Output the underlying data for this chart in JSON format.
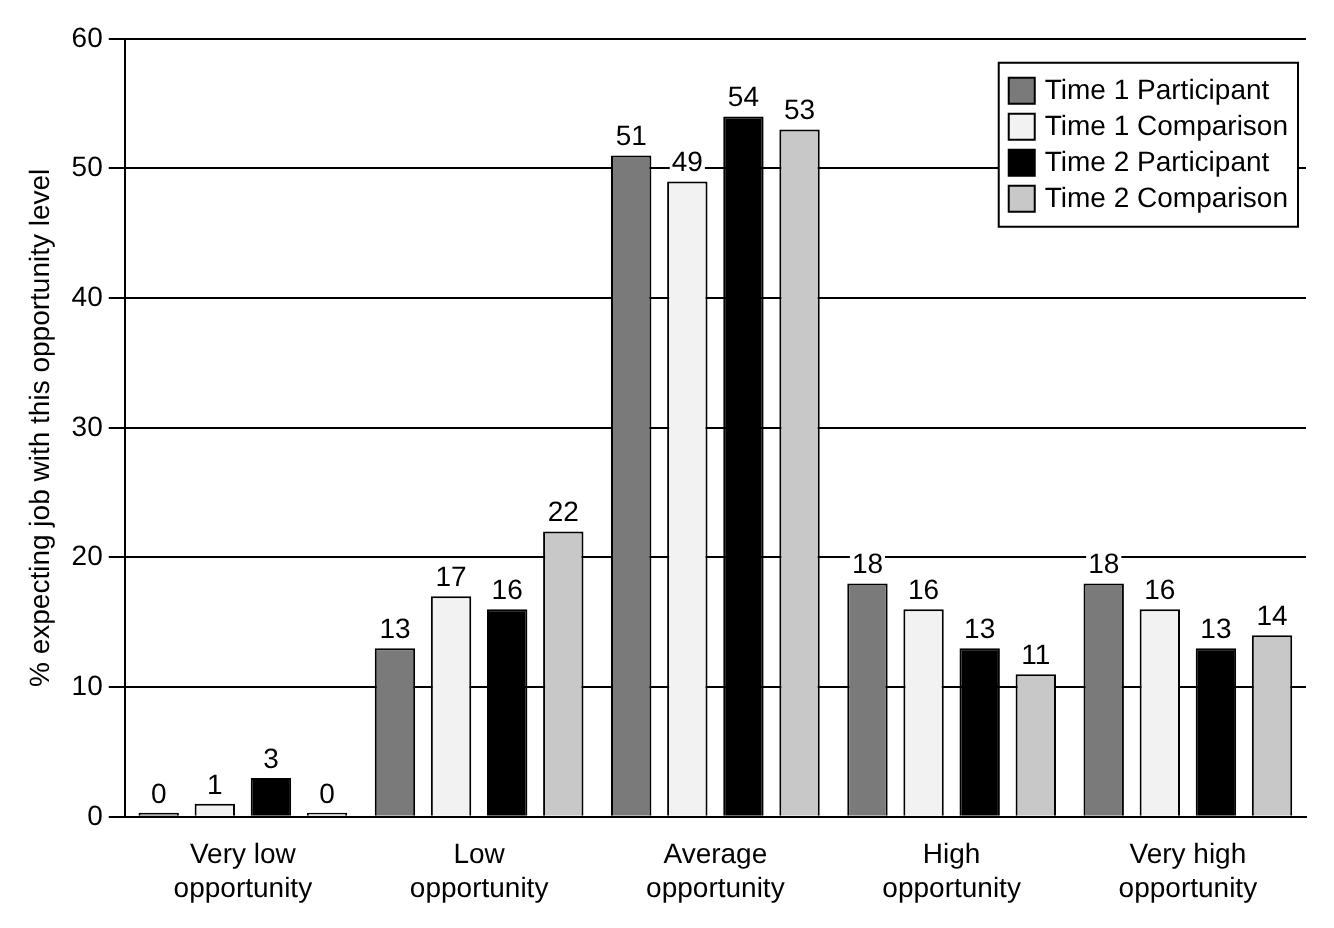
{
  "chart_data": {
    "type": "bar",
    "ylabel": "% expecting job with this opportunity level",
    "categories": [
      "Very low opportunity",
      "Low opportunity",
      "Average opportunity",
      "High opportunity",
      "Very high opportunity"
    ],
    "series": [
      {
        "name": "Time 1 Participant",
        "color": "#7a7a7a",
        "values": [
          0,
          13,
          51,
          18,
          18
        ]
      },
      {
        "name": "Time 1 Comparison",
        "color": "#f2f2f2",
        "values": [
          1,
          17,
          49,
          16,
          16
        ]
      },
      {
        "name": "Time 2 Participant",
        "color": "#000000",
        "values": [
          3,
          16,
          54,
          13,
          13
        ]
      },
      {
        "name": "Time 2 Comparison",
        "color": "#c8c8c8",
        "values": [
          0,
          22,
          53,
          11,
          14
        ]
      }
    ],
    "ylim": [
      0,
      60
    ],
    "yticks": [
      0,
      10,
      20,
      30,
      40,
      50,
      60
    ],
    "grid": "y",
    "legend": "top right",
    "data_labels": true
  }
}
